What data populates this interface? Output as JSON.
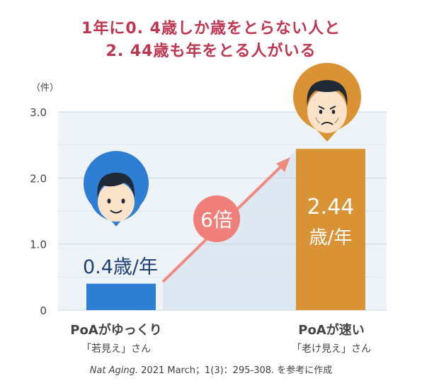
{
  "header": {
    "title_line1": "1年に0. 4歳しか歳をとらない人と",
    "title_line2": "2. 44歳も年をとる人がいる"
  },
  "chart_data": {
    "type": "bar",
    "y_unit": "（件）",
    "ylim": [
      0,
      3.0
    ],
    "y_ticks": [
      "0",
      "1.0",
      "2.0",
      "3.0"
    ],
    "categories": [
      "PoAがゆっくり",
      "PoAが速い"
    ],
    "category_notes": [
      "「若見え」さん",
      "「老け見え」さん"
    ],
    "values": [
      0.4,
      2.44
    ],
    "value_labels": [
      "0.4歳/年",
      "2.44\n歳/年"
    ],
    "bar_colors": [
      "#2e7fd3",
      "#d99234"
    ],
    "ratio_label": "6倍",
    "grid": true
  },
  "colors": {
    "title": "#c0354f",
    "arrow": "#ef8a80",
    "ratio_circle": "#f07f79"
  },
  "icons": [
    "young-face-icon",
    "old-face-icon"
  ],
  "source": {
    "journal": "Nat Aging.",
    "rest": "2021 March；1(3)：295-308. を参考に作成"
  }
}
